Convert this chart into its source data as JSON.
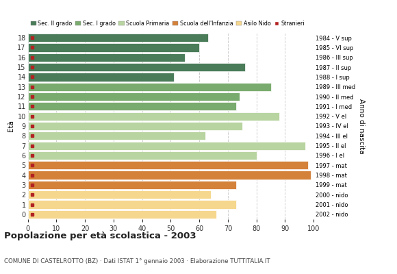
{
  "ages": [
    18,
    17,
    16,
    15,
    14,
    13,
    12,
    11,
    10,
    9,
    8,
    7,
    6,
    5,
    4,
    3,
    2,
    1,
    0
  ],
  "anno_nascita": [
    "1984 - V sup",
    "1985 - VI sup",
    "1986 - III sup",
    "1987 - II sup",
    "1988 - I sup",
    "1989 - III med",
    "1990 - II med",
    "1991 - I med",
    "1992 - V el",
    "1993 - IV el",
    "1994 - III el",
    "1995 - II el",
    "1996 - I el",
    "1997 - mat",
    "1998 - mat",
    "1999 - mat",
    "2000 - nido",
    "2001 - nido",
    "2002 - nido"
  ],
  "bar_values": [
    63,
    60,
    55,
    76,
    51,
    85,
    74,
    73,
    88,
    75,
    62,
    97,
    80,
    98,
    99,
    73,
    64,
    73,
    66
  ],
  "stranieri_x": [
    2,
    2,
    1,
    2,
    2,
    2,
    3,
    3,
    3,
    5,
    2,
    4,
    4,
    5,
    7,
    5,
    5,
    3,
    4
  ],
  "colors": {
    "sec_II": "#4a7c59",
    "sec_I": "#7aab6e",
    "primaria": "#b8d4a0",
    "infanzia": "#d4813a",
    "nido": "#f5d78e",
    "stranieri": "#b22222"
  },
  "school_colors": [
    "#4a7c59",
    "#4a7c59",
    "#4a7c59",
    "#4a7c59",
    "#4a7c59",
    "#7aab6e",
    "#7aab6e",
    "#7aab6e",
    "#b8d4a0",
    "#b8d4a0",
    "#b8d4a0",
    "#b8d4a0",
    "#b8d4a0",
    "#d4813a",
    "#d4813a",
    "#d4813a",
    "#f5d78e",
    "#f5d78e",
    "#f5d78e"
  ],
  "legend_labels": [
    "Sec. II grado",
    "Sec. I grado",
    "Scuola Primaria",
    "Scuola dell'Infanzia",
    "Asilo Nido",
    "Stranieri"
  ],
  "legend_colors": [
    "#4a7c59",
    "#7aab6e",
    "#b8d4a0",
    "#d4813a",
    "#f5d78e",
    "#b22222"
  ],
  "title": "Popolazione per età scolastica - 2003",
  "subtitle": "COMUNE DI CASTELROTTO (BZ) · Dati ISTAT 1° gennaio 2003 · Elaborazione TUTTITALIA.IT",
  "ylabel_left": "Età",
  "ylabel_right": "Anno di nascita",
  "xlim": [
    0,
    100
  ],
  "xticks": [
    0,
    10,
    20,
    30,
    40,
    50,
    60,
    70,
    80,
    90,
    100
  ],
  "background_color": "#ffffff",
  "grid_color": "#cccccc",
  "tick_color": "#333333"
}
